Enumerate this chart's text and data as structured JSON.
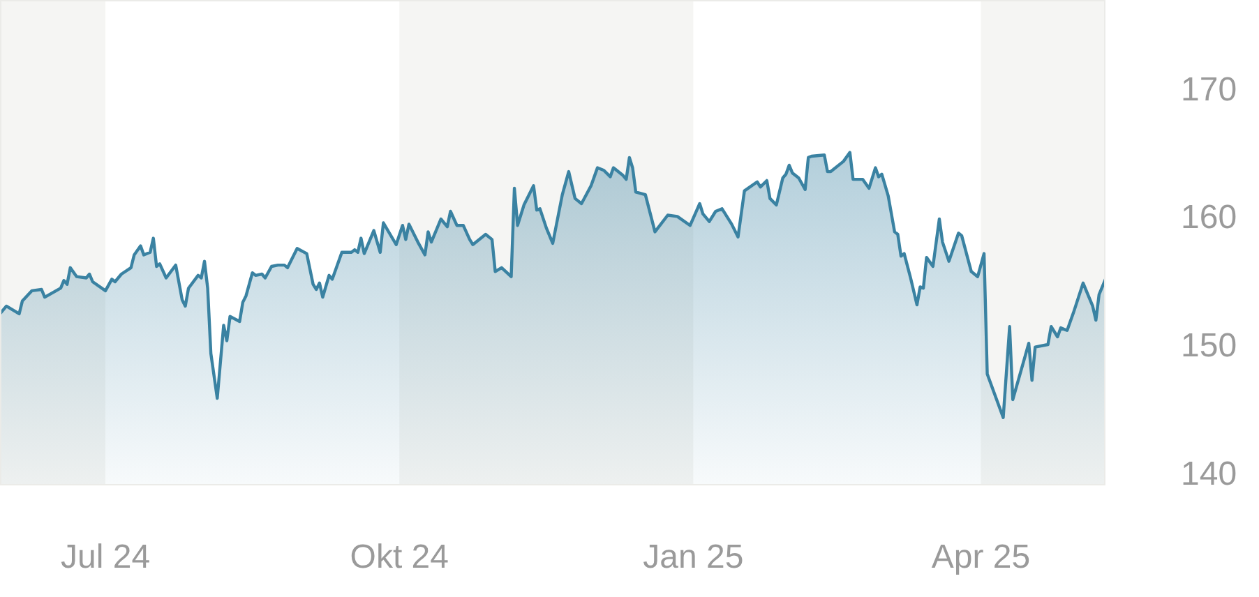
{
  "chart_data": {
    "type": "area",
    "x": [
      "2024-05-29",
      "2024-05-31",
      "2024-06-04",
      "2024-06-05",
      "2024-06-08",
      "2024-06-11",
      "2024-06-12",
      "2024-06-17",
      "2024-06-18",
      "2024-06-19",
      "2024-06-20",
      "2024-06-22",
      "2024-06-25",
      "2024-06-26",
      "2024-06-27",
      "2024-07-01",
      "2024-07-03",
      "2024-07-04",
      "2024-07-06",
      "2024-07-09",
      "2024-07-10",
      "2024-07-12",
      "2024-07-13",
      "2024-07-15",
      "2024-07-16",
      "2024-07-17",
      "2024-07-18",
      "2024-07-20",
      "2024-07-23",
      "2024-07-25",
      "2024-07-26",
      "2024-07-27",
      "2024-07-30",
      "2024-07-31",
      "2024-08-01",
      "2024-08-02",
      "2024-08-03",
      "2024-08-05",
      "2024-08-07",
      "2024-08-08",
      "2024-08-09",
      "2024-08-12",
      "2024-08-13",
      "2024-08-14",
      "2024-08-16",
      "2024-08-17",
      "2024-08-19",
      "2024-08-20",
      "2024-08-22",
      "2024-08-24",
      "2024-08-26",
      "2024-08-27",
      "2024-08-30",
      "2024-09-02",
      "2024-09-04",
      "2024-09-05",
      "2024-09-06",
      "2024-09-07",
      "2024-09-09",
      "2024-09-10",
      "2024-09-13",
      "2024-09-16",
      "2024-09-17",
      "2024-09-18",
      "2024-09-19",
      "2024-09-20",
      "2024-09-23",
      "2024-09-25",
      "2024-09-26",
      "2024-09-30",
      "2024-10-02",
      "2024-10-03",
      "2024-10-04",
      "2024-10-07",
      "2024-10-09",
      "2024-10-10",
      "2024-10-11",
      "2024-10-14",
      "2024-10-16",
      "2024-10-17",
      "2024-10-19",
      "2024-10-21",
      "2024-10-23",
      "2024-10-24",
      "2024-10-28",
      "2024-10-30",
      "2024-10-31",
      "2024-11-02",
      "2024-11-05",
      "2024-11-06",
      "2024-11-07",
      "2024-11-09",
      "2024-11-12",
      "2024-11-13",
      "2024-11-14",
      "2024-11-16",
      "2024-11-18",
      "2024-11-21",
      "2024-11-23",
      "2024-11-25",
      "2024-11-27",
      "2024-11-30",
      "2024-12-02",
      "2024-12-04",
      "2024-12-06",
      "2024-12-07",
      "2024-12-10",
      "2024-12-11",
      "2024-12-12",
      "2024-12-13",
      "2024-12-14",
      "2024-12-17",
      "2024-12-20",
      "2024-12-24",
      "2024-12-27",
      "2024-12-31",
      "2025-01-03",
      "2025-01-04",
      "2025-01-06",
      "2025-01-08",
      "2025-01-10",
      "2025-01-13",
      "2025-01-15",
      "2025-01-17",
      "2025-01-21",
      "2025-01-22",
      "2025-01-24",
      "2025-01-25",
      "2025-01-27",
      "2025-01-29",
      "2025-01-30",
      "2025-01-31",
      "2025-02-01",
      "2025-02-03",
      "2025-02-05",
      "2025-02-06",
      "2025-02-07",
      "2025-02-11",
      "2025-02-12",
      "2025-02-13",
      "2025-02-17",
      "2025-02-19",
      "2025-02-20",
      "2025-02-23",
      "2025-02-25",
      "2025-02-27",
      "2025-02-28",
      "2025-03-01",
      "2025-03-03",
      "2025-03-05",
      "2025-03-06",
      "2025-03-07",
      "2025-03-08",
      "2025-03-10",
      "2025-03-12",
      "2025-03-13",
      "2025-03-14",
      "2025-03-15",
      "2025-03-17",
      "2025-03-19",
      "2025-03-20",
      "2025-03-22",
      "2025-03-25",
      "2025-03-26",
      "2025-03-29",
      "2025-03-31",
      "2025-04-02",
      "2025-04-03",
      "2025-04-08",
      "2025-04-10",
      "2025-04-11",
      "2025-04-16",
      "2025-04-17",
      "2025-04-18",
      "2025-04-22",
      "2025-04-23",
      "2025-04-25",
      "2025-04-26",
      "2025-04-28",
      "2025-04-30",
      "2025-05-03",
      "2025-05-06",
      "2025-05-07",
      "2025-05-08",
      "2025-05-10"
    ],
    "series": [
      {
        "color": "#3a82a2",
        "values": [
          152.6,
          153.2,
          152.6,
          153.6,
          154.4,
          154.5,
          153.9,
          154.6,
          155.2,
          154.9,
          156.2,
          155.5,
          155.4,
          155.7,
          155.1,
          154.4,
          155.3,
          155.1,
          155.7,
          156.2,
          157.2,
          157.9,
          157.2,
          157.4,
          158.5,
          156.3,
          156.5,
          155.4,
          156.4,
          153.7,
          153.2,
          154.6,
          155.6,
          155.4,
          156.7,
          154.6,
          149.5,
          146.0,
          151.7,
          150.5,
          152.4,
          152.0,
          153.5,
          154.0,
          155.8,
          155.6,
          155.7,
          155.4,
          156.3,
          156.4,
          156.4,
          156.2,
          157.7,
          157.3,
          154.9,
          154.5,
          155.0,
          153.9,
          155.6,
          155.3,
          157.4,
          157.4,
          157.6,
          157.4,
          158.5,
          157.3,
          159.1,
          157.4,
          159.7,
          158.0,
          159.5,
          158.4,
          159.6,
          158.1,
          157.2,
          159.0,
          158.2,
          160.0,
          159.4,
          160.6,
          159.5,
          159.5,
          158.4,
          158.0,
          158.8,
          158.4,
          155.9,
          156.2,
          155.5,
          162.4,
          159.5,
          161.1,
          162.6,
          160.7,
          160.8,
          159.3,
          158.1,
          161.9,
          163.7,
          161.6,
          161.2,
          162.6,
          164.0,
          163.8,
          163.3,
          164.0,
          163.4,
          163.1,
          164.8,
          164.0,
          162.1,
          161.9,
          159.0,
          160.3,
          160.2,
          159.5,
          161.2,
          160.4,
          159.8,
          160.6,
          160.8,
          159.6,
          158.6,
          162.2,
          162.9,
          162.5,
          163.0,
          161.6,
          161.1,
          163.2,
          163.5,
          164.2,
          163.6,
          163.2,
          162.3,
          164.8,
          164.9,
          165.0,
          163.7,
          163.7,
          164.5,
          165.2,
          163.1,
          163.1,
          162.4,
          164.0,
          163.3,
          163.5,
          161.8,
          159.0,
          158.8,
          157.1,
          157.3,
          155.4,
          153.3,
          154.7,
          154.6,
          157.0,
          156.3,
          160.0,
          158.2,
          156.7,
          158.9,
          158.7,
          155.9,
          155.5,
          157.3,
          147.9,
          144.5,
          151.6,
          145.9,
          150.3,
          147.4,
          150.0,
          150.2,
          151.6,
          150.8,
          151.5,
          151.3,
          152.7,
          155.0,
          153.2,
          152.1,
          154.1,
          155.3
        ]
      }
    ],
    "xticks": [
      {
        "value": "2024-07-01",
        "label": "Jul 24"
      },
      {
        "value": "2024-10-01",
        "label": "Okt 24"
      },
      {
        "value": "2025-01-01",
        "label": "Jan 25"
      },
      {
        "value": "2025-04-01",
        "label": "Apr 25"
      }
    ],
    "xlim": [
      "2024-05-29",
      "2025-05-10"
    ],
    "ylim": [
      139.2,
      177.1
    ],
    "yticks": [
      140,
      150,
      160,
      170
    ],
    "bands": [
      {
        "axis": "x",
        "from": "2024-05-29",
        "to": "2024-07-01",
        "color": "#f5f5f3"
      },
      {
        "axis": "x",
        "from": "2024-10-01",
        "to": "2025-01-01",
        "color": "#f5f5f3"
      },
      {
        "axis": "x",
        "from": "2025-04-01",
        "to": "2025-05-10",
        "color": "#f5f5f3"
      }
    ],
    "grid": false,
    "legend": false
  }
}
